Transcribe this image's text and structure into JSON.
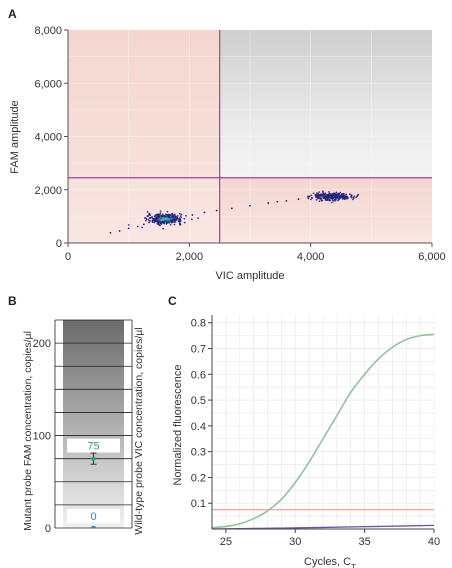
{
  "panels": {
    "a": "A",
    "b": "B",
    "c": "C"
  },
  "colors": {
    "quadrant_line": "#a0449a",
    "pink_region": "#f6dcd6",
    "gray_region": "#dadada",
    "cluster": "#25237e",
    "cluster_core": "#3cbf78",
    "c_green_curve": "#8fc49a",
    "c_threshold": "#f2aaa4",
    "c_baseline": "#5a5ba8",
    "b_marker": "#3a9d68",
    "b_zero": "#2e84b6"
  },
  "chart_data": [
    {
      "type": "scatter",
      "panel": "A",
      "xlabel": "VIC amplitude",
      "ylabel": "FAM amplitude",
      "xlim": [
        0,
        6000
      ],
      "ylim": [
        0,
        8000
      ],
      "xticks": [
        "0",
        "2,000",
        "4,000",
        "6,000"
      ],
      "yticks": [
        "0",
        "2,000",
        "4,000",
        "6,000",
        "8,000"
      ],
      "threshold_x": 2500,
      "threshold_y": 2450,
      "grid": true,
      "clusters": [
        {
          "x": 1600,
          "y": 900,
          "sx": 140,
          "sy": 90,
          "n": 420
        },
        {
          "x": 4350,
          "y": 1750,
          "sx": 160,
          "sy": 70,
          "n": 320
        }
      ],
      "scatter_trail": [
        {
          "x": 1000,
          "y": 550
        },
        {
          "x": 850,
          "y": 450
        },
        {
          "x": 1150,
          "y": 620
        },
        {
          "x": 700,
          "y": 380
        },
        {
          "x": 2050,
          "y": 1050
        },
        {
          "x": 2250,
          "y": 1150
        },
        {
          "x": 2700,
          "y": 1300
        },
        {
          "x": 3000,
          "y": 1400
        },
        {
          "x": 3300,
          "y": 1500
        },
        {
          "x": 3600,
          "y": 1580
        },
        {
          "x": 3800,
          "y": 1650
        },
        {
          "x": 1250,
          "y": 700
        },
        {
          "x": 2450,
          "y": 1220
        },
        {
          "x": 3450,
          "y": 1550
        }
      ]
    },
    {
      "type": "bar",
      "panel": "B",
      "ylabel_left": "Mutant probe FAM concentration, copies/µl",
      "ylabel_right": "Wild-type probe VIC concentration, copies/µl",
      "ylim": [
        0,
        225
      ],
      "yticks": [
        "0",
        "100",
        "200"
      ],
      "values": [
        {
          "label": "75",
          "value": 75,
          "error": 6
        },
        {
          "label": "0",
          "value": 0,
          "error": 0
        }
      ]
    },
    {
      "type": "line",
      "panel": "C",
      "xlabel": "Cycles, C",
      "xlabel_sub": "T",
      "ylabel": "Normalized fluorescence",
      "xlim": [
        24,
        40
      ],
      "ylim": [
        0,
        0.83
      ],
      "xticks": [
        "25",
        "30",
        "35",
        "40"
      ],
      "yticks": [
        "0.1",
        "0.2",
        "0.3",
        "0.4",
        "0.5",
        "0.6",
        "0.7",
        "0.8"
      ],
      "threshold": 0.075,
      "grid": true,
      "series": [
        {
          "x": [
            24,
            25,
            26,
            27,
            28,
            29,
            30,
            31,
            32,
            33,
            34,
            35,
            36,
            37,
            38,
            39,
            40
          ],
          "y": [
            0.005,
            0.01,
            0.02,
            0.04,
            0.07,
            0.115,
            0.18,
            0.26,
            0.35,
            0.44,
            0.53,
            0.6,
            0.66,
            0.705,
            0.735,
            0.75,
            0.755
          ]
        },
        {
          "x": [
            24,
            28,
            32,
            36,
            40
          ],
          "y": [
            0.0,
            0.003,
            0.006,
            0.01,
            0.014
          ]
        }
      ]
    }
  ]
}
